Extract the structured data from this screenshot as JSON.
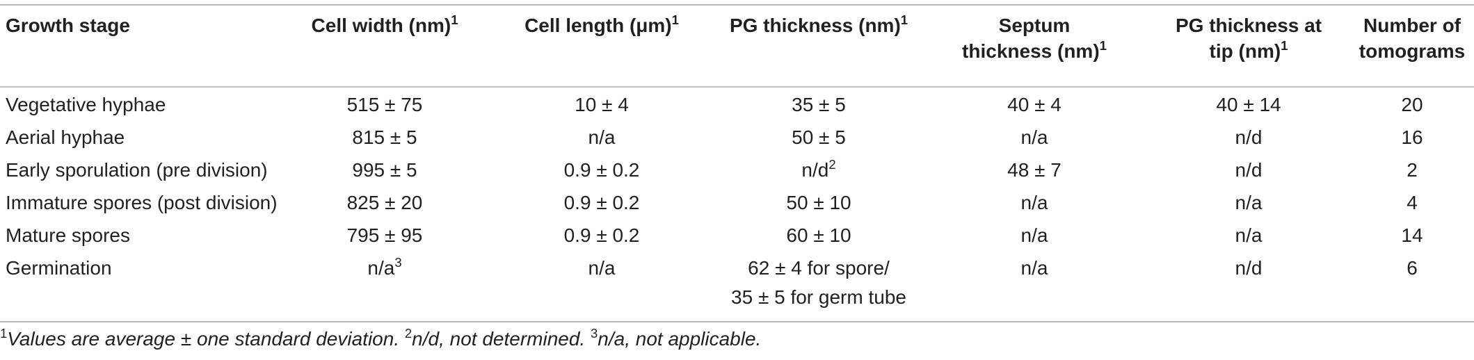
{
  "table": {
    "headers": {
      "growth_stage": "Growth stage",
      "cell_width": "Cell width (nm)",
      "cell_width_sup": "1",
      "cell_length": "Cell length (μm)",
      "cell_length_sup": "1",
      "pg_thickness": "PG thickness (nm)",
      "pg_thickness_sup": "1",
      "septum_l1": "Septum",
      "septum_l2": "thickness (nm)",
      "septum_sup": "1",
      "pg_tip_l1": "PG thickness at",
      "pg_tip_l2": "tip (nm)",
      "pg_tip_sup": "1",
      "tomo_l1": "Number of",
      "tomo_l2": "tomograms"
    },
    "rows": [
      {
        "stage": "Vegetative hyphae",
        "width": "515 ± 75",
        "length": "10 ± 4",
        "pg": "35 ± 5",
        "septum": "40 ± 4",
        "tip": "40 ± 14",
        "tomo": "20"
      },
      {
        "stage": "Aerial hyphae",
        "width": "815 ± 5",
        "length": "n/a",
        "pg": "50 ± 5",
        "septum": "n/a",
        "tip": "n/d",
        "tomo": "16"
      },
      {
        "stage": "Early sporulation (pre division)",
        "width": "995 ± 5",
        "length": "0.9 ± 0.2",
        "pg": "n/d",
        "pg_sup": "2",
        "septum": "48 ± 7",
        "tip": "n/d",
        "tomo": "2"
      },
      {
        "stage": "Immature spores (post division)",
        "width": "825 ± 20",
        "length": "0.9 ± 0.2",
        "pg": "50 ± 10",
        "septum": "n/a",
        "tip": "n/a",
        "tomo": "4"
      },
      {
        "stage": "Mature spores",
        "width": "795 ± 95",
        "length": "0.9 ± 0.2",
        "pg": "60 ± 10",
        "septum": "n/a",
        "tip": "n/a",
        "tomo": "14"
      },
      {
        "stage": "Germination",
        "width": "n/a",
        "width_sup": "3",
        "length": "n/a",
        "pg": "62 ± 4 for spore/",
        "pg_l2": "35 ± 5 for germ tube",
        "septum": "n/a",
        "tip": "n/d",
        "tomo": "6"
      }
    ]
  },
  "footnote": {
    "sup1": "1",
    "text1": "Values are average ± one standard deviation. ",
    "sup2": "2",
    "text2": "n/d, not determined. ",
    "sup3": "3",
    "text3": "n/a, not applicable."
  }
}
